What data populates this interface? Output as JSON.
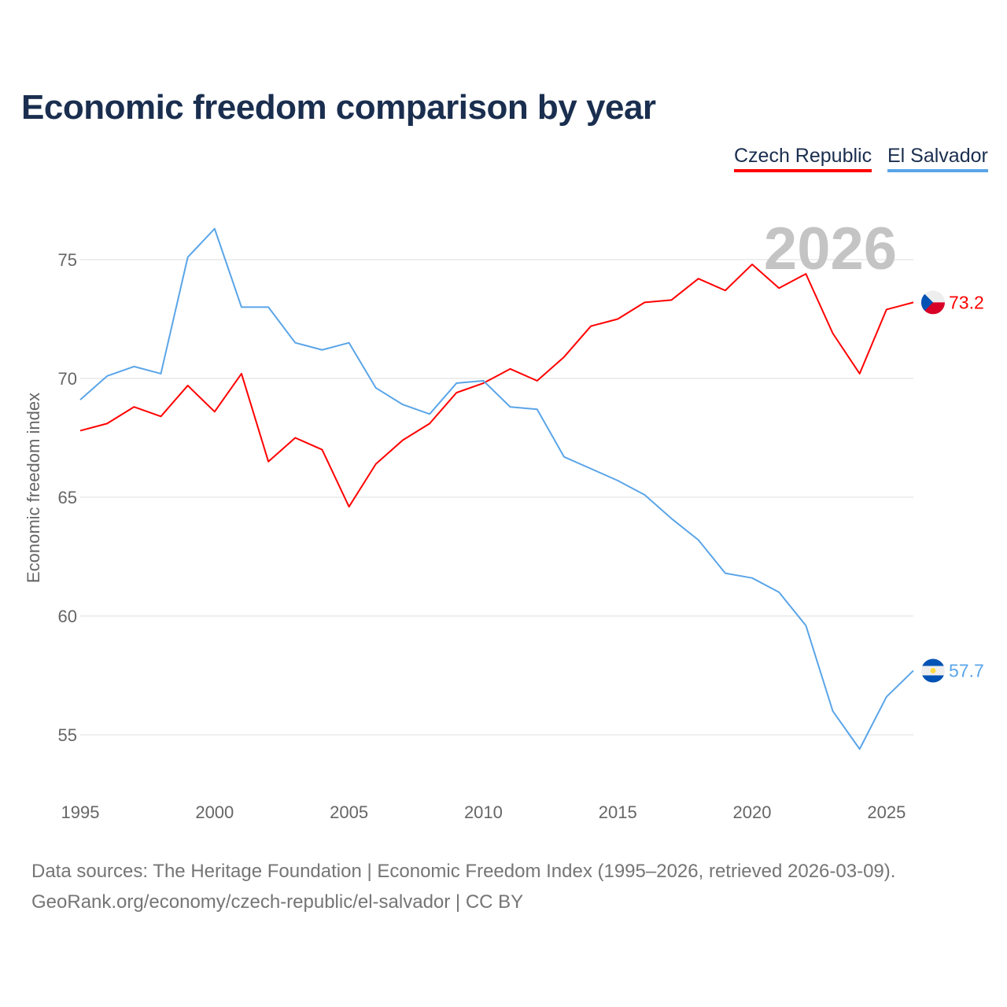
{
  "title": "Economic freedom comparison by year",
  "legend": [
    "Czech Republic",
    "El Salvador"
  ],
  "year_watermark": "2026",
  "source_line1": "Data sources: The Heritage Foundation | Economic Freedom Index (1995–2026, retrieved 2026-03-09).",
  "source_line2": "GeoRank.org/economy/czech-republic/el-salvador | CC BY",
  "chart_data": {
    "type": "line",
    "title": "Economic freedom comparison by year",
    "xlabel": "",
    "ylabel": "Economic freedom index",
    "x": [
      1995,
      1996,
      1997,
      1998,
      1999,
      2000,
      2001,
      2002,
      2003,
      2004,
      2005,
      2006,
      2007,
      2008,
      2009,
      2010,
      2011,
      2012,
      2013,
      2014,
      2015,
      2016,
      2017,
      2018,
      2019,
      2020,
      2021,
      2022,
      2023,
      2024,
      2025,
      2026
    ],
    "xlim": [
      1995,
      2026
    ],
    "ylim": [
      53,
      77.5
    ],
    "xticks": [
      1995,
      2000,
      2005,
      2010,
      2015,
      2020,
      2025
    ],
    "yticks": [
      55,
      60,
      65,
      70,
      75
    ],
    "grid": true,
    "legend_position": "top-right",
    "series": [
      {
        "name": "Czech Republic",
        "color": "#ff0000",
        "end_label": "73.2",
        "flag": "czech-flag",
        "values": [
          67.8,
          68.1,
          68.8,
          68.4,
          69.7,
          68.6,
          70.2,
          66.5,
          67.5,
          67.0,
          64.6,
          66.4,
          67.4,
          68.1,
          69.4,
          69.8,
          70.4,
          69.9,
          70.9,
          72.2,
          72.5,
          73.2,
          73.3,
          74.2,
          73.7,
          74.8,
          73.8,
          74.4,
          71.9,
          70.2,
          72.9,
          73.2
        ]
      },
      {
        "name": "El Salvador",
        "color": "#5aa5e8",
        "end_label": "57.7",
        "flag": "el-salvador-flag",
        "values": [
          69.1,
          70.1,
          70.5,
          70.2,
          75.1,
          76.3,
          73.0,
          73.0,
          71.5,
          71.2,
          71.5,
          69.6,
          68.9,
          68.5,
          69.8,
          69.9,
          68.8,
          68.7,
          66.7,
          66.2,
          65.7,
          65.1,
          64.1,
          63.2,
          61.8,
          61.6,
          61.0,
          59.6,
          56.0,
          54.4,
          56.6,
          57.7
        ]
      }
    ]
  }
}
